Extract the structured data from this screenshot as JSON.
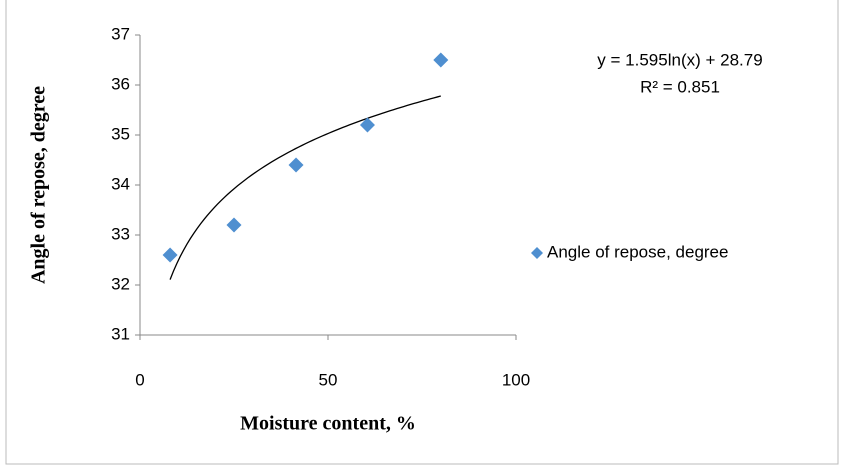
{
  "chart_data": {
    "type": "scatter",
    "x_label": "Moisture content, %",
    "y_label": "Angle of repose, degree",
    "series": [
      {
        "name": "Angle of repose, degree",
        "color": "#4f8fd0",
        "x": [
          8,
          25,
          41.5,
          60.5,
          80
        ],
        "values": [
          32.6,
          33.2,
          34.4,
          35.2,
          36.5
        ]
      }
    ],
    "xlim": [
      0,
      100
    ],
    "xticks": [
      0,
      50,
      100
    ],
    "ylim": [
      31,
      37
    ],
    "yticks": [
      31,
      32,
      33,
      34,
      35,
      36,
      37
    ],
    "legend": "right",
    "trendline": {
      "type": "log",
      "coefficients": [
        1.595,
        28.79
      ],
      "color": "#000000",
      "equation": "y = 1.595ln(x) + 28.79",
      "r2_label": "R² = 0.851"
    }
  }
}
